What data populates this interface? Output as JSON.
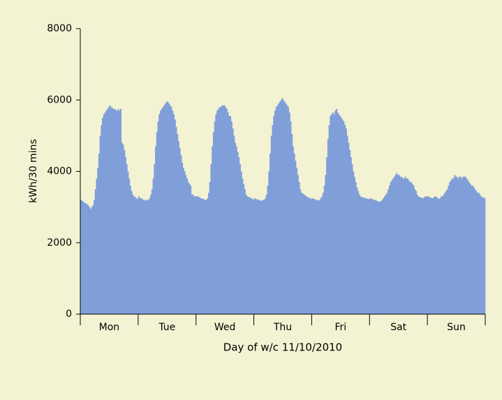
{
  "chart_data": {
    "type": "bar",
    "xlabel": "Day of w/c 11/10/2010",
    "ylabel": "kWh/30 mins",
    "color": "#809fd9",
    "grid": false,
    "ylim": [
      0,
      8000
    ],
    "yticks": [
      0,
      2000,
      4000,
      6000,
      8000
    ],
    "categories": [
      null,
      null,
      null,
      null,
      null,
      null,
      null,
      null,
      null,
      null,
      null,
      null,
      null,
      null,
      null,
      null,
      null,
      null,
      null,
      null,
      null,
      null,
      null,
      null,
      "Mon",
      null,
      null,
      null,
      null,
      null,
      null,
      null,
      null,
      null,
      null,
      null,
      null,
      null,
      null,
      null,
      null,
      null,
      null,
      null,
      null,
      null,
      null,
      null,
      null,
      null,
      null,
      null,
      null,
      null,
      null,
      null,
      null,
      null,
      null,
      null,
      null,
      null,
      null,
      null,
      null,
      null,
      null,
      null,
      null,
      null,
      null,
      null,
      "Tue",
      null,
      null,
      null,
      null,
      null,
      null,
      null,
      null,
      null,
      null,
      null,
      null,
      null,
      null,
      null,
      null,
      null,
      null,
      null,
      null,
      null,
      null,
      null,
      null,
      null,
      null,
      null,
      null,
      null,
      null,
      null,
      null,
      null,
      null,
      null,
      null,
      null,
      null,
      null,
      null,
      null,
      null,
      null,
      null,
      null,
      null,
      null,
      "Wed",
      null,
      null,
      null,
      null,
      null,
      null,
      null,
      null,
      null,
      null,
      null,
      null,
      null,
      null,
      null,
      null,
      null,
      null,
      null,
      null,
      null,
      null,
      null,
      null,
      null,
      null,
      null,
      null,
      null,
      null,
      null,
      null,
      null,
      null,
      null,
      null,
      null,
      null,
      null,
      null,
      null,
      null,
      null,
      null,
      null,
      null,
      null,
      "Thu",
      null,
      null,
      null,
      null,
      null,
      null,
      null,
      null,
      null,
      null,
      null,
      null,
      null,
      null,
      null,
      null,
      null,
      null,
      null,
      null,
      null,
      null,
      null,
      null,
      null,
      null,
      null,
      null,
      null,
      null,
      null,
      null,
      null,
      null,
      null,
      null,
      null,
      null,
      null,
      null,
      null,
      null,
      null,
      null,
      null,
      null,
      null,
      "Fri",
      null,
      null,
      null,
      null,
      null,
      null,
      null,
      null,
      null,
      null,
      null,
      null,
      null,
      null,
      null,
      null,
      null,
      null,
      null,
      null,
      null,
      null,
      null,
      null,
      null,
      null,
      null,
      null,
      null,
      null,
      null,
      null,
      null,
      null,
      null,
      null,
      null,
      null,
      null,
      null,
      null,
      null,
      null,
      null,
      null,
      null,
      null,
      "Sat",
      null,
      null,
      null,
      null,
      null,
      null,
      null,
      null,
      null,
      null,
      null,
      null,
      null,
      null,
      null,
      null,
      null,
      null,
      null,
      null,
      null,
      null,
      null,
      null,
      null,
      null,
      null,
      null,
      null,
      null,
      null,
      null,
      null,
      null,
      null,
      null,
      null,
      null,
      null,
      null,
      null,
      null,
      null,
      null,
      null,
      null,
      null,
      "Sun",
      null,
      null,
      null,
      null,
      null,
      null,
      null,
      null,
      null,
      null,
      null,
      null,
      null,
      null,
      null,
      null,
      null,
      null,
      null,
      null,
      null,
      null,
      null
    ],
    "values": [
      3200,
      3180,
      3150,
      3120,
      3100,
      3080,
      3050,
      3000,
      2950,
      3000,
      3050,
      3200,
      3500,
      3800,
      4100,
      4500,
      5000,
      5300,
      5500,
      5600,
      5650,
      5700,
      5750,
      5800,
      5850,
      5800,
      5780,
      5750,
      5750,
      5720,
      5700,
      5750,
      5700,
      5750,
      4800,
      4750,
      4600,
      4400,
      4200,
      4000,
      3800,
      3600,
      3450,
      3350,
      3300,
      3280,
      3250,
      3220,
      3300,
      3250,
      3250,
      3220,
      3200,
      3200,
      3180,
      3200,
      3200,
      3250,
      3350,
      3500,
      3800,
      4200,
      4700,
      5100,
      5400,
      5600,
      5700,
      5750,
      5800,
      5850,
      5900,
      5950,
      5950,
      5900,
      5850,
      5800,
      5700,
      5600,
      5450,
      5250,
      5050,
      4850,
      4650,
      4450,
      4250,
      4100,
      4000,
      3900,
      3800,
      3700,
      3650,
      3600,
      3350,
      3350,
      3300,
      3300,
      3300,
      3300,
      3280,
      3250,
      3250,
      3230,
      3220,
      3200,
      3200,
      3250,
      3400,
      3700,
      4200,
      4700,
      5100,
      5400,
      5600,
      5700,
      5750,
      5800,
      5800,
      5850,
      5850,
      5850,
      5800,
      5750,
      5650,
      5550,
      5550,
      5400,
      5200,
      5000,
      4800,
      4700,
      4550,
      4400,
      4200,
      4000,
      3800,
      3650,
      3500,
      3350,
      3300,
      3280,
      3270,
      3250,
      3230,
      3200,
      3250,
      3230,
      3220,
      3200,
      3200,
      3180,
      3180,
      3200,
      3200,
      3250,
      3350,
      3600,
      4000,
      4500,
      5000,
      5300,
      5550,
      5700,
      5800,
      5850,
      5900,
      5950,
      6000,
      6050,
      6000,
      5950,
      5900,
      5850,
      5800,
      5650,
      5400,
      5050,
      4700,
      4500,
      4300,
      4100,
      3900,
      3700,
      3500,
      3400,
      3380,
      3350,
      3330,
      3300,
      3280,
      3260,
      3250,
      3230,
      3250,
      3230,
      3220,
      3200,
      3200,
      3180,
      3200,
      3250,
      3300,
      3400,
      3600,
      3900,
      4400,
      4900,
      5300,
      5550,
      5600,
      5650,
      5600,
      5700,
      5750,
      5650,
      5600,
      5550,
      5500,
      5450,
      5400,
      5300,
      5200,
      5000,
      4800,
      4600,
      4400,
      4200,
      4000,
      3850,
      3700,
      3550,
      3450,
      3350,
      3300,
      3280,
      3270,
      3260,
      3250,
      3240,
      3230,
      3220,
      3250,
      3230,
      3220,
      3200,
      3200,
      3180,
      3170,
      3150,
      3150,
      3170,
      3200,
      3250,
      3300,
      3350,
      3400,
      3500,
      3600,
      3700,
      3750,
      3800,
      3850,
      3900,
      3950,
      3900,
      3900,
      3850,
      3850,
      3800,
      3800,
      3850,
      3800,
      3800,
      3750,
      3700,
      3700,
      3650,
      3600,
      3500,
      3450,
      3350,
      3300,
      3280,
      3270,
      3260,
      3250,
      3280,
      3300,
      3300,
      3300,
      3280,
      3270,
      3250,
      3250,
      3280,
      3300,
      3280,
      3250,
      3230,
      3250,
      3300,
      3300,
      3350,
      3400,
      3450,
      3500,
      3600,
      3700,
      3750,
      3800,
      3800,
      3900,
      3850,
      3850,
      3800,
      3850,
      3850,
      3800,
      3850,
      3850,
      3850,
      3800,
      3750,
      3700,
      3650,
      3600,
      3600,
      3550,
      3500,
      3450,
      3400,
      3400,
      3350,
      3300,
      3280,
      3260,
      3250
    ]
  }
}
